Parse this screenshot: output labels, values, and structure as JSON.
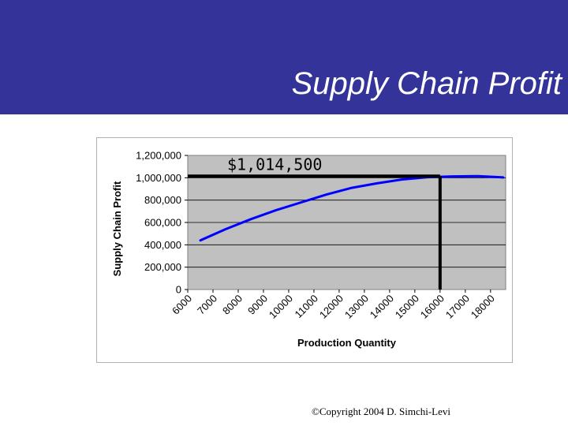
{
  "slide": {
    "title": "Supply Chain Profit",
    "copyright": "©Copyright 2004 D. Simchi-Levi"
  },
  "colors": {
    "banner": "#333399",
    "plot_area": "#c0c0c0",
    "series": "#0000ff",
    "annotation_lines": "#000000"
  },
  "chart_data": {
    "type": "line",
    "title": "",
    "xlabel": "Production Quantity",
    "ylabel": "Supply Chain Profit",
    "x_ticks": [
      "6000",
      "7000",
      "8000",
      "9000",
      "10000",
      "11000",
      "12000",
      "13000",
      "14000",
      "15000",
      "16000",
      "17000",
      "18000"
    ],
    "y_ticks": [
      "0",
      "200,000",
      "400,000",
      "600,000",
      "800,000",
      "1,000,000",
      "1,200,000"
    ],
    "xlim": [
      6000,
      18600
    ],
    "ylim": [
      0,
      1200000
    ],
    "grid": true,
    "legend": "none",
    "series": [
      {
        "x": [
          6500,
          7500,
          8500,
          9500,
          10500,
          11500,
          12500,
          13500,
          14500,
          15500,
          16500,
          17500,
          18500
        ],
        "values": [
          440000,
          540000,
          630000,
          710000,
          780000,
          850000,
          910000,
          950000,
          985000,
          1005000,
          1012000,
          1014000,
          1003000
        ]
      }
    ],
    "annotation": {
      "label": "$1,014,500",
      "x": 16000,
      "y": 1014500
    }
  }
}
